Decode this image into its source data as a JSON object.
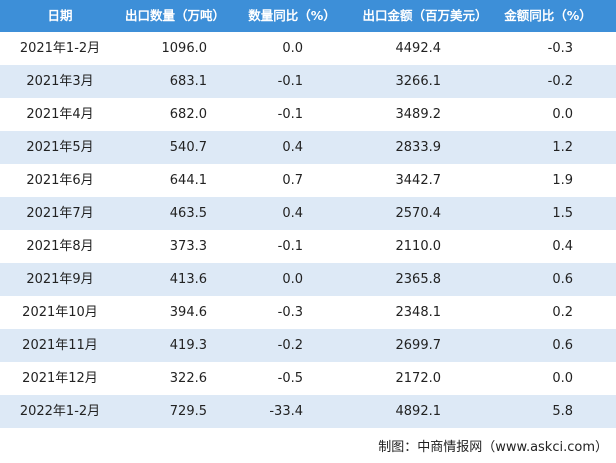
{
  "table": {
    "header": [
      "日期",
      "出口数量（万吨）",
      "数量同比（%）",
      "出口金额（百万美元）",
      "金额同比（%）"
    ],
    "rows": [
      [
        "2021年1-2月",
        "1096.0",
        "0.0",
        "4492.4",
        "-0.3"
      ],
      [
        "2021年3月",
        "683.1",
        "-0.1",
        "3266.1",
        "-0.2"
      ],
      [
        "2021年4月",
        "682.0",
        "-0.1",
        "3489.2",
        "0.0"
      ],
      [
        "2021年5月",
        "540.7",
        "0.4",
        "2833.9",
        "1.2"
      ],
      [
        "2021年6月",
        "644.1",
        "0.7",
        "3442.7",
        "1.9"
      ],
      [
        "2021年7月",
        "463.5",
        "0.4",
        "2570.4",
        "1.5"
      ],
      [
        "2021年8月",
        "373.3",
        "-0.1",
        "2110.0",
        "0.4"
      ],
      [
        "2021年9月",
        "413.6",
        "0.0",
        "2365.8",
        "0.6"
      ],
      [
        "2021年10月",
        "394.6",
        "-0.3",
        "2348.1",
        "0.2"
      ],
      [
        "2021年11月",
        "419.3",
        "-0.2",
        "2699.7",
        "0.6"
      ],
      [
        "2021年12月",
        "322.6",
        "-0.5",
        "2172.0",
        "0.0"
      ],
      [
        "2022年1-2月",
        "729.5",
        "-33.4",
        "4892.1",
        "5.8"
      ]
    ]
  },
  "footer": {
    "source": "制图：中商情报网（www.askci.com）"
  }
}
